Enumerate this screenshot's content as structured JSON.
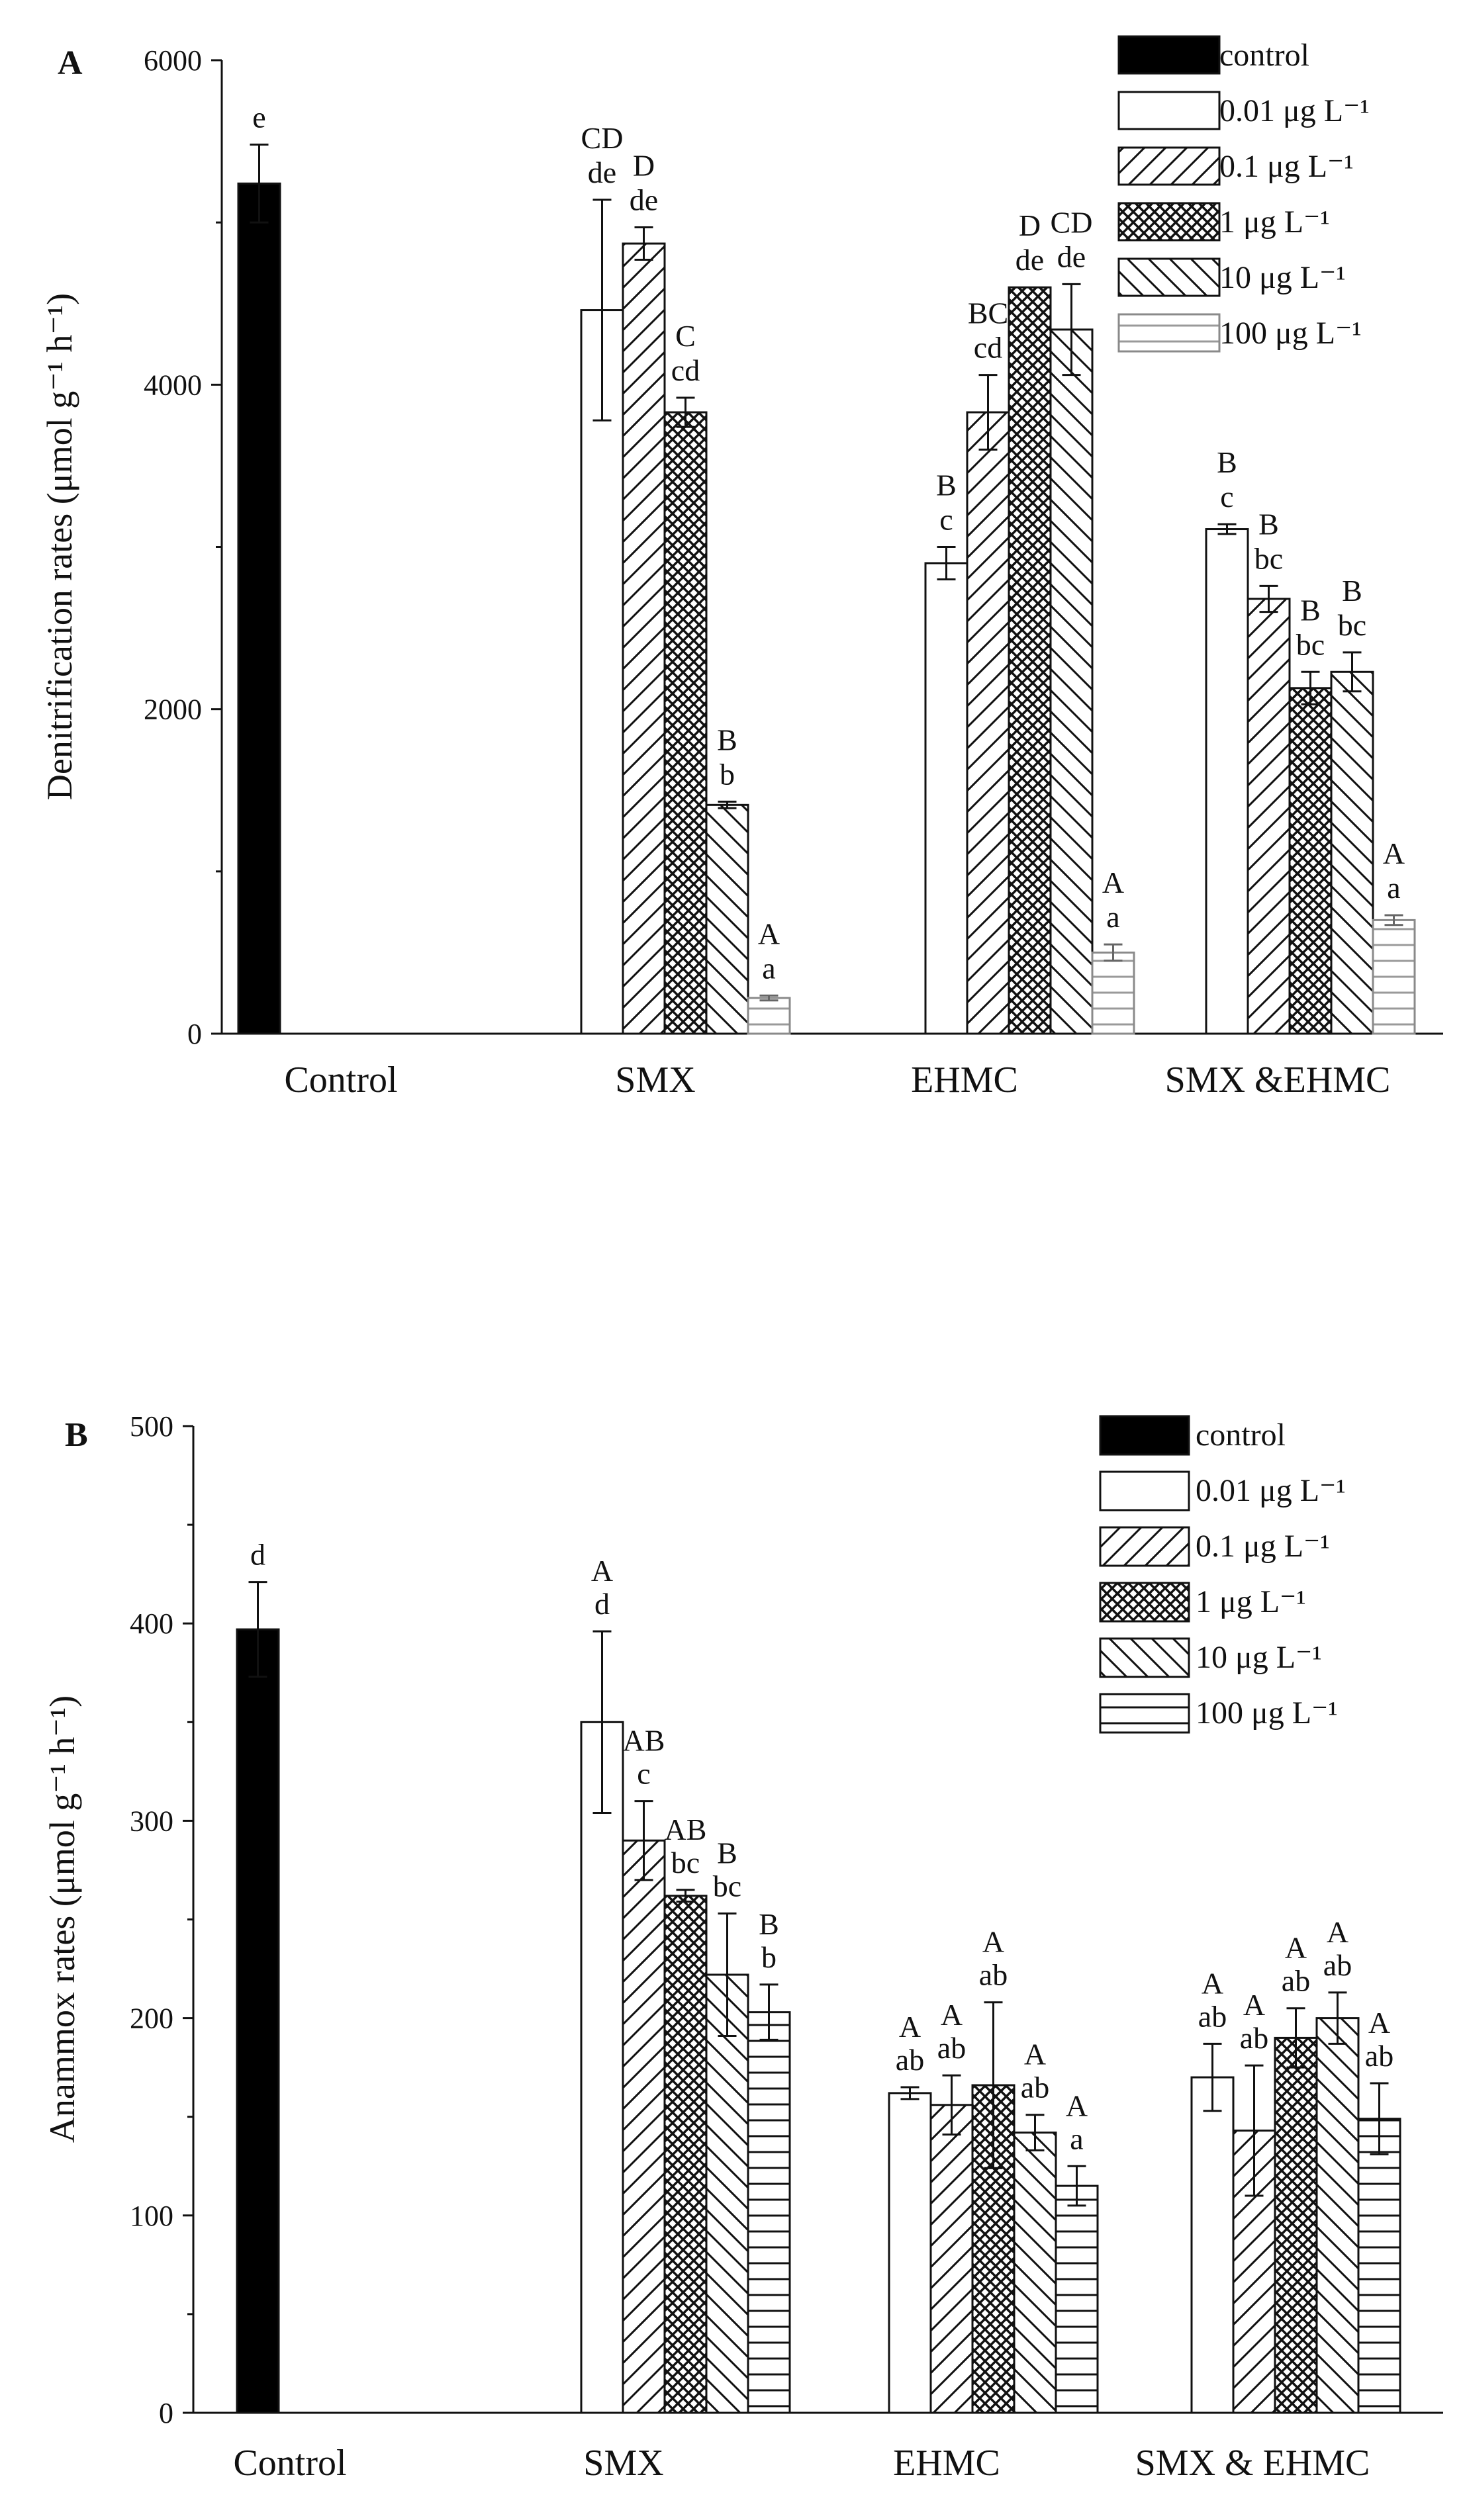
{
  "chart_data": [
    {
      "panel": "A",
      "type": "bar",
      "ylabel": "Denitrification rates (μmol g⁻¹ h⁻¹)",
      "ylim": [
        0,
        6000
      ],
      "yticks": [
        "0",
        "2000",
        "4000",
        "6000"
      ],
      "categories": [
        "Control",
        "SMX",
        "EHMC",
        "SMX &EHMC"
      ],
      "legend": [
        {
          "label": "control",
          "pattern": "solid"
        },
        {
          "label": "0.01  μg L⁻¹",
          "pattern": "open"
        },
        {
          "label": "0.1   μg L⁻¹",
          "pattern": "hatch-forward"
        },
        {
          "label": "1     μg L⁻¹",
          "pattern": "crosshatch"
        },
        {
          "label": "10   μg L⁻¹",
          "pattern": "hatch-back"
        },
        {
          "label": "100  μg L⁻¹",
          "pattern": "horizontal-grey"
        }
      ],
      "bars": [
        {
          "group": "Control",
          "series": "control",
          "value": 5240,
          "error": 240,
          "labels": [
            "e"
          ]
        },
        {
          "group": "SMX",
          "series": "0.01",
          "value": 4460,
          "error": 680,
          "labels": [
            "CD",
            "de"
          ]
        },
        {
          "group": "SMX",
          "series": "0.1",
          "value": 4870,
          "error": 100,
          "labels": [
            "D",
            "de"
          ]
        },
        {
          "group": "SMX",
          "series": "1",
          "value": 3830,
          "error": 90,
          "labels": [
            "C",
            "cd"
          ]
        },
        {
          "group": "SMX",
          "series": "10",
          "value": 1410,
          "error": 20,
          "labels": [
            "B",
            "b"
          ]
        },
        {
          "group": "SMX",
          "series": "100",
          "value": 220,
          "error": 15,
          "labels": [
            "A",
            "a"
          ]
        },
        {
          "group": "EHMC",
          "series": "0.01",
          "value": 2900,
          "error": 100,
          "labels": [
            "B",
            "c"
          ]
        },
        {
          "group": "EHMC",
          "series": "0.1",
          "value": 3830,
          "error": 230,
          "labels": [
            "BC",
            "cd"
          ]
        },
        {
          "group": "EHMC",
          "series": "1",
          "value": 4600,
          "error": 0,
          "labels": [
            "D",
            "de"
          ]
        },
        {
          "group": "EHMC",
          "series": "10",
          "value": 4340,
          "error": 280,
          "labels": [
            "CD",
            "de"
          ]
        },
        {
          "group": "EHMC",
          "series": "100",
          "value": 500,
          "error": 50,
          "labels": [
            "A",
            "a"
          ]
        },
        {
          "group": "SMX &EHMC",
          "series": "0.01",
          "value": 3110,
          "error": 30,
          "labels": [
            "B",
            "c"
          ]
        },
        {
          "group": "SMX &EHMC",
          "series": "0.1",
          "value": 2680,
          "error": 80,
          "labels": [
            "B",
            "bc"
          ]
        },
        {
          "group": "SMX &EHMC",
          "series": "1",
          "value": 2130,
          "error": 100,
          "labels": [
            "B",
            "bc"
          ]
        },
        {
          "group": "SMX &EHMC",
          "series": "10",
          "value": 2230,
          "error": 120,
          "labels": [
            "B",
            "bc"
          ]
        },
        {
          "group": "SMX &EHMC",
          "series": "100",
          "value": 700,
          "error": 30,
          "labels": [
            "A",
            "a"
          ]
        }
      ]
    },
    {
      "panel": "B",
      "type": "bar",
      "ylabel": "Anammox rates (μmol g⁻¹ h⁻¹)",
      "ylim": [
        0,
        500
      ],
      "yticks": [
        "0",
        "100",
        "200",
        "300",
        "400",
        "500"
      ],
      "categories": [
        "Control",
        "SMX",
        "EHMC",
        "SMX & EHMC"
      ],
      "legend": [
        {
          "label": "control",
          "pattern": "solid"
        },
        {
          "label": "0.01 μg L⁻¹",
          "pattern": "open"
        },
        {
          "label": "0.1   μg L⁻¹",
          "pattern": "hatch-forward"
        },
        {
          "label": "1       μg L⁻¹",
          "pattern": "crosshatch"
        },
        {
          "label": "10     μg L⁻¹",
          "pattern": "hatch-back"
        },
        {
          "label": "100   μg L⁻¹",
          "pattern": "horizontal"
        }
      ],
      "bars": [
        {
          "group": "Control",
          "series": "control",
          "value": 397,
          "error": 24,
          "labels": [
            "d"
          ]
        },
        {
          "group": "SMX",
          "series": "0.01",
          "value": 350,
          "error": 46,
          "labels": [
            "A",
            "d"
          ]
        },
        {
          "group": "SMX",
          "series": "0.1",
          "value": 290,
          "error": 20,
          "labels": [
            "AB",
            "c"
          ]
        },
        {
          "group": "SMX",
          "series": "1",
          "value": 262,
          "error": 3,
          "labels": [
            "AB",
            "bc"
          ]
        },
        {
          "group": "SMX",
          "series": "10",
          "value": 222,
          "error": 31,
          "labels": [
            "B",
            "bc"
          ]
        },
        {
          "group": "SMX",
          "series": "100",
          "value": 203,
          "error": 14,
          "labels": [
            "B",
            "b"
          ]
        },
        {
          "group": "EHMC",
          "series": "0.01",
          "value": 162,
          "error": 3,
          "labels": [
            "A",
            "ab"
          ]
        },
        {
          "group": "EHMC",
          "series": "0.1",
          "value": 156,
          "error": 15,
          "labels": [
            "A",
            "ab"
          ]
        },
        {
          "group": "EHMC",
          "series": "1",
          "value": 166,
          "error": 42,
          "labels": [
            "A",
            "ab"
          ]
        },
        {
          "group": "EHMC",
          "series": "10",
          "value": 142,
          "error": 9,
          "labels": [
            "A",
            "ab"
          ]
        },
        {
          "group": "EHMC",
          "series": "100",
          "value": 115,
          "error": 10,
          "labels": [
            "A",
            "a"
          ]
        },
        {
          "group": "SMX & EHMC",
          "series": "0.01",
          "value": 170,
          "error": 17,
          "labels": [
            "A",
            "ab"
          ]
        },
        {
          "group": "SMX & EHMC",
          "series": "0.1",
          "value": 143,
          "error": 33,
          "labels": [
            "A",
            "ab"
          ]
        },
        {
          "group": "SMX & EHMC",
          "series": "1",
          "value": 190,
          "error": 15,
          "labels": [
            "A",
            "ab"
          ]
        },
        {
          "group": "SMX & EHMC",
          "series": "10",
          "value": 200,
          "error": 13,
          "labels": [
            "A",
            "ab"
          ]
        },
        {
          "group": "SMX & EHMC",
          "series": "100",
          "value": 149,
          "error": 18,
          "labels": [
            "A",
            "ab"
          ]
        }
      ]
    }
  ]
}
